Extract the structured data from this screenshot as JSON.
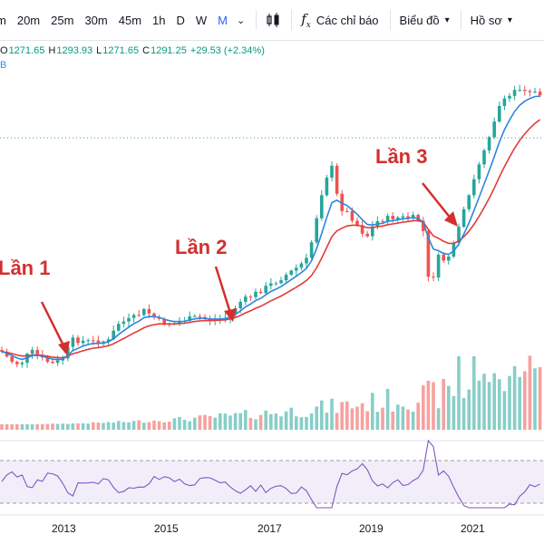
{
  "toolbar": {
    "timeframes": [
      "m",
      "20m",
      "25m",
      "30m",
      "45m",
      "1h",
      "D",
      "W",
      "M"
    ],
    "active_timeframe": "M",
    "indicators_label": "Các chỉ báo",
    "chart_type_label": "Biểu đồ",
    "profile_label": "Hồ sơ"
  },
  "ohlc": {
    "o_key": "O",
    "o": "1271.65",
    "h_key": "H",
    "h": "1293.93",
    "l_key": "L",
    "l": "1271.65",
    "c_key": "C",
    "c": "1291.25",
    "change": "+29.53 (+2.34%)"
  },
  "legend_fragment": "B",
  "annotations": [
    {
      "label": "Lần 1"
    },
    {
      "label": "Lần 2"
    },
    {
      "label": "Lần 3"
    }
  ],
  "x_axis_labels": [
    "2013",
    "2015",
    "2017",
    "2019",
    "2021"
  ],
  "colors": {
    "up": "#26a69a",
    "down": "#ef5350",
    "ma_fast": "#2e86de",
    "ma_slow": "#e53935",
    "rsi": "#7e57c2",
    "annotation": "#d32f2f",
    "active": "#2962ff"
  }
}
